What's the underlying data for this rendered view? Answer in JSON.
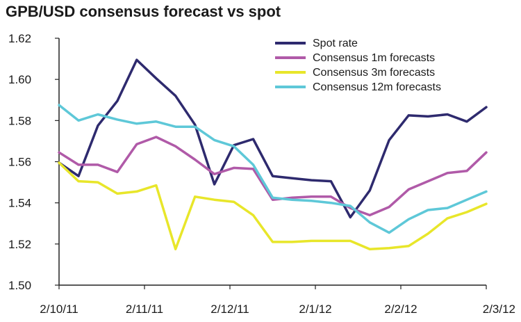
{
  "chart_data": {
    "type": "line",
    "title": "GPB/USD consensus forecast vs spot",
    "x_tick_labels": [
      "2/10/11",
      "2/11/11",
      "2/12/11",
      "2/1/12",
      "2/2/12",
      "2/3/12"
    ],
    "y_tick_labels": [
      "1.50",
      "1.52",
      "1.54",
      "1.56",
      "1.58",
      "1.60",
      "1.62"
    ],
    "ylim": [
      1.5,
      1.62
    ],
    "x_range": [
      0,
      25
    ],
    "grid": false,
    "legend_position": "top-right",
    "series": [
      {
        "name": "Spot rate",
        "color": "#2e2a6e",
        "values": [
          1.5595,
          1.553,
          1.5775,
          1.5895,
          1.6095,
          1.6005,
          1.592,
          1.578,
          1.549,
          1.568,
          1.571,
          1.553,
          1.552,
          1.551,
          1.5505,
          1.533,
          1.546,
          1.5705,
          1.5825,
          1.582,
          1.583,
          1.5795,
          1.5865
        ]
      },
      {
        "name": "Consensus 1m forecasts",
        "color": "#b05aa8",
        "values": [
          1.5645,
          1.5585,
          1.5585,
          1.555,
          1.5685,
          1.572,
          1.5675,
          1.561,
          1.554,
          1.557,
          1.5565,
          1.5415,
          1.5425,
          1.543,
          1.543,
          1.5375,
          1.534,
          1.538,
          1.5465,
          1.5505,
          1.5545,
          1.5555,
          1.5645
        ]
      },
      {
        "name": "Consensus 3m forecasts",
        "color": "#e8e62a",
        "values": [
          1.5595,
          1.5505,
          1.55,
          1.5445,
          1.5455,
          1.5485,
          1.5175,
          1.543,
          1.5415,
          1.5405,
          1.534,
          1.521,
          1.521,
          1.5215,
          1.5215,
          1.5215,
          1.5175,
          1.518,
          1.519,
          1.525,
          1.5325,
          1.5355,
          1.5395
        ]
      },
      {
        "name": "Consensus 12m forecasts",
        "color": "#5ec8d8",
        "values": [
          1.5875,
          1.58,
          1.583,
          1.5805,
          1.5785,
          1.5795,
          1.577,
          1.577,
          1.5705,
          1.5675,
          1.5585,
          1.5425,
          1.5415,
          1.541,
          1.54,
          1.5385,
          1.5305,
          1.5255,
          1.532,
          1.5365,
          1.5375,
          1.5415,
          1.5455
        ]
      }
    ]
  }
}
